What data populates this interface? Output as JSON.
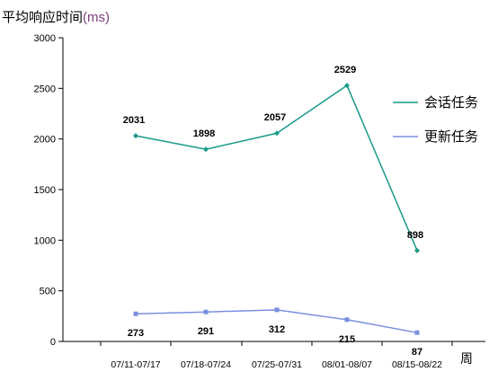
{
  "chart_data": {
    "type": "line",
    "ylabel": "平均响应时间",
    "ylabel_unit": "(ms)",
    "xlabel": "周",
    "categories": [
      "07/11-07/17",
      "07/18-07/24",
      "07/25-07/31",
      "08/01-08/07",
      "08/15-08/22"
    ],
    "ylim": [
      0,
      3000
    ],
    "yticks": [
      0,
      500,
      1000,
      1500,
      2000,
      2500,
      3000
    ],
    "series": [
      {
        "name": "会话任务",
        "values": [
          2031,
          1898,
          2057,
          2529,
          898
        ],
        "labels": [
          "2031",
          "1898",
          "2057",
          "2529",
          "898"
        ],
        "color": "#1a9a8a"
      },
      {
        "name": "更新任务",
        "values": [
          273,
          291,
          312,
          215,
          87
        ],
        "labels": [
          "273",
          "291",
          "312",
          "215",
          "87"
        ],
        "color": "#7b8fe0"
      }
    ],
    "legend_position": "right",
    "grid": false
  }
}
